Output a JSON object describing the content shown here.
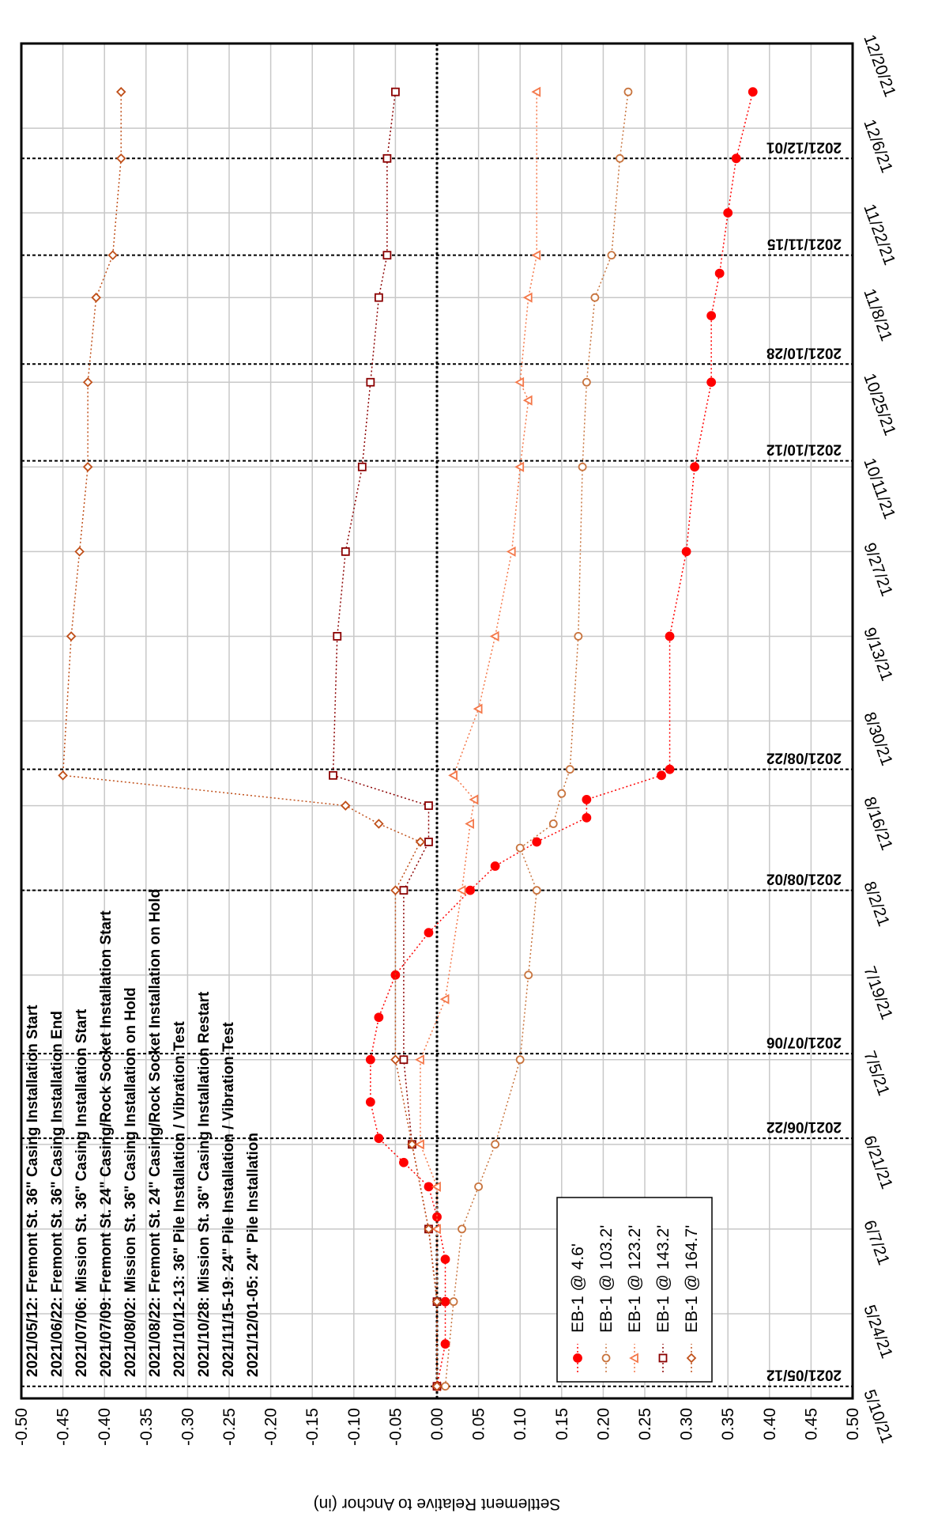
{
  "chart_data": {
    "type": "line",
    "y_label": "Settlement Relative to Anchor (in)",
    "xlim": [
      "5/10/21",
      "12/20/21"
    ],
    "xticks": [
      "5/10/21",
      "5/24/21",
      "6/7/21",
      "6/21/21",
      "7/5/21",
      "7/19/21",
      "8/2/21",
      "8/16/21",
      "8/30/21",
      "9/13/21",
      "9/27/21",
      "10/11/21",
      "10/25/21",
      "11/8/21",
      "11/22/21",
      "12/6/21",
      "12/20/21"
    ],
    "ylim": [
      0.5,
      -0.5
    ],
    "yticks": [
      {
        "value": -0.5,
        "label": "-0.50"
      },
      {
        "value": -0.45,
        "label": "-0.45"
      },
      {
        "value": -0.4,
        "label": "-0.40"
      },
      {
        "value": -0.35,
        "label": "-0.35"
      },
      {
        "value": -0.3,
        "label": "-0.30"
      },
      {
        "value": -0.25,
        "label": "-0.25"
      },
      {
        "value": -0.2,
        "label": "-0.20"
      },
      {
        "value": -0.15,
        "label": "-0.15"
      },
      {
        "value": -0.1,
        "label": "-0.10"
      },
      {
        "value": -0.05,
        "label": "-0.05"
      },
      {
        "value": 0,
        "label": "0.00"
      },
      {
        "value": 0.05,
        "label": "0.05"
      },
      {
        "value": 0.1,
        "label": "0.10"
      },
      {
        "value": 0.15,
        "label": "0.15"
      },
      {
        "value": 0.2,
        "label": "0.20"
      },
      {
        "value": 0.25,
        "label": "0.25"
      },
      {
        "value": 0.3,
        "label": "0.30"
      },
      {
        "value": 0.35,
        "label": "0.35"
      },
      {
        "value": 0.4,
        "label": "0.40"
      },
      {
        "value": 0.45,
        "label": "0.45"
      },
      {
        "value": 0.5,
        "label": "0.50"
      }
    ],
    "grid": true,
    "legend": "lower left",
    "events": [
      "2021/05/12",
      "2021/06/22",
      "2021/07/06",
      "2021/08/02",
      "2021/08/22",
      "2021/10/12",
      "2021/10/28",
      "2021/11/15",
      "2021/12/01"
    ],
    "annotations": [
      "2021/05/12: Fremont St. 36\" Casing Installation Start",
      "2021/06/22: Fremont St. 36\" Casing Installation End",
      "2021/07/06: Mission St. 36\" Casing Installation Start",
      "2021/07/09: Fremont St. 24\" Casing/Rock Socket Installation Start",
      "2021/08/02: Mission St. 36\" Casing Installation on Hold",
      "2021/08/22: Fremont St. 24\" Casing/Rock Socket Installation on Hold",
      "2021/10/12-13: 36\" Pile Installation / Vibration Test",
      "2021/10/28: Mission St. 36\" Casing Installation Restart",
      "2021/11/15-19: 24\" Pile Installation / Vibration Test",
      "2021/12/01-05: 24\" Pile Installation"
    ],
    "series": [
      {
        "name": "EB-1 @ 4.6'",
        "color": "#ff0000",
        "marker": "circle-filled",
        "x": [
          "5/12/21",
          "5/19/21",
          "5/26/21",
          "6/2/21",
          "6/9/21",
          "6/14/21",
          "6/18/21",
          "6/22/21",
          "6/28/21",
          "7/5/21",
          "7/12/21",
          "7/19/21",
          "7/26/21",
          "8/2/21",
          "8/6/21",
          "8/10/21",
          "8/14/21",
          "8/17/21",
          "8/21/21",
          "8/22/21",
          "9/13/21",
          "9/27/21",
          "10/11/21",
          "10/25/21",
          "11/5/21",
          "11/12/21",
          "11/22/21",
          "12/1/21",
          "12/12/21"
        ],
        "values": [
          0,
          0.01,
          0.01,
          0.01,
          0,
          -0.01,
          -0.04,
          -0.07,
          -0.08,
          -0.08,
          -0.07,
          -0.05,
          -0.01,
          0.04,
          0.07,
          0.12,
          0.18,
          0.18,
          0.27,
          0.28,
          0.28,
          0.3,
          0.31,
          0.33,
          0.33,
          0.34,
          0.35,
          0.36,
          0.38
        ]
      },
      {
        "name": "EB-1 @ 103.2'",
        "color": "#c8743e",
        "marker": "circle",
        "x": [
          "5/12/21",
          "5/26/21",
          "6/7/21",
          "6/14/21",
          "6/21/21",
          "7/5/21",
          "7/19/21",
          "8/2/21",
          "8/9/21",
          "8/13/21",
          "8/18/21",
          "8/22/21",
          "9/13/21",
          "10/11/21",
          "10/25/21",
          "11/8/21",
          "11/15/21",
          "12/1/21",
          "12/12/21"
        ],
        "values": [
          0.01,
          0.02,
          0.03,
          0.05,
          0.07,
          0.1,
          0.11,
          0.12,
          0.1,
          0.14,
          0.15,
          0.16,
          0.17,
          0.175,
          0.18,
          0.19,
          0.21,
          0.22,
          0.23
        ]
      },
      {
        "name": "EB-1 @ 123.2'",
        "color": "#f4784a",
        "marker": "triangle",
        "x": [
          "5/12/21",
          "6/7/21",
          "6/14/21",
          "6/21/21",
          "7/5/21",
          "7/15/21",
          "8/2/21",
          "8/13/21",
          "8/17/21",
          "8/21/21",
          "9/1/21",
          "9/13/21",
          "9/27/21",
          "10/11/21",
          "10/22/21",
          "10/25/21",
          "11/8/21",
          "11/15/21",
          "12/12/21"
        ],
        "values": [
          0,
          0,
          0,
          -0.02,
          -0.02,
          0.01,
          0.03,
          0.04,
          0.045,
          0.02,
          0.05,
          0.07,
          0.09,
          0.1,
          0.11,
          0.1,
          0.11,
          0.12,
          0.12
        ]
      },
      {
        "name": "EB-1 @ 143.2'",
        "color": "#8b0000",
        "marker": "square",
        "x": [
          "5/12/21",
          "5/26/21",
          "6/7/21",
          "6/21/21",
          "7/5/21",
          "8/2/21",
          "8/10/21",
          "8/16/21",
          "8/21/21",
          "9/13/21",
          "9/27/21",
          "10/11/21",
          "10/25/21",
          "11/8/21",
          "11/15/21",
          "12/1/21",
          "12/12/21"
        ],
        "values": [
          0,
          0,
          -0.01,
          -0.03,
          -0.04,
          -0.04,
          -0.01,
          -0.01,
          -0.125,
          -0.12,
          -0.11,
          -0.09,
          -0.08,
          -0.07,
          -0.06,
          -0.06,
          -0.05
        ]
      },
      {
        "name": "EB-1 @ 164.7'",
        "color": "#c0501a",
        "marker": "diamond",
        "x": [
          "5/12/21",
          "5/26/21",
          "6/7/21",
          "6/21/21",
          "7/5/21",
          "8/2/21",
          "8/10/21",
          "8/13/21",
          "8/16/21",
          "8/21/21",
          "9/13/21",
          "9/27/21",
          "10/11/21",
          "10/25/21",
          "11/8/21",
          "11/15/21",
          "12/1/21",
          "12/12/21"
        ],
        "values": [
          0,
          0,
          -0.01,
          -0.03,
          -0.05,
          -0.05,
          -0.02,
          -0.07,
          -0.11,
          -0.45,
          -0.44,
          -0.43,
          -0.42,
          -0.42,
          -0.41,
          -0.39,
          -0.38,
          -0.38
        ]
      }
    ]
  }
}
